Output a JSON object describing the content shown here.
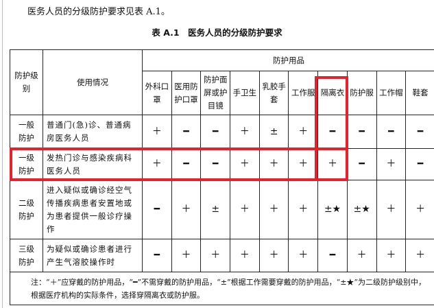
{
  "intro": "医务人员的分级防护要求见表 A.1。",
  "caption": "表 A.1　医务人员的分级防护要求",
  "headers": {
    "level": "防护级别",
    "usage": "使用情况",
    "group": "防护用品",
    "items": [
      "外科口罩",
      "医用防护口罩",
      "防护面屏或护目镜",
      "手卫生",
      "乳胶手套",
      "工作服",
      "隔离衣",
      "防护服",
      "工作帽",
      "鞋套"
    ]
  },
  "rows": [
    {
      "level": "一般防护",
      "usage": "普通门(急)诊、普通病房医务人员",
      "marks": [
        "＋",
        "━",
        "━",
        "＋",
        "±",
        "＋",
        "━",
        "━",
        "━",
        "━"
      ]
    },
    {
      "level": "一级防护",
      "usage": "发热门诊与感染疾病科医务人员",
      "marks": [
        "＋",
        "━",
        "━",
        "＋",
        "＋",
        "＋",
        "＋",
        "━",
        "＋",
        "━"
      ]
    },
    {
      "level": "二级防护",
      "usage": "进入疑似或确诊经空气传播疾病患者安置地或为患者提供一般诊疗操作",
      "marks": [
        "━",
        "＋",
        "±",
        "＋",
        "＋",
        "＋",
        "±★",
        "±★",
        "＋",
        "＋"
      ]
    },
    {
      "level": "三级防护",
      "usage": "为疑似或确诊患者进行产生气溶胶操作时",
      "marks": [
        "━",
        "＋",
        "＋",
        "＋",
        "＋",
        "＋",
        "━",
        "＋",
        "＋",
        "＋"
      ]
    }
  ],
  "note": "注：“＋”应穿戴的防护用品，“━”不需穿戴的防护用品，“±”根据工作需要穿戴的防护用品，“±★”为二级防护级别中，根据医疗机构的实际条件，选择穿隔离衣或防护服。",
  "highlight_color": "#e8202a"
}
